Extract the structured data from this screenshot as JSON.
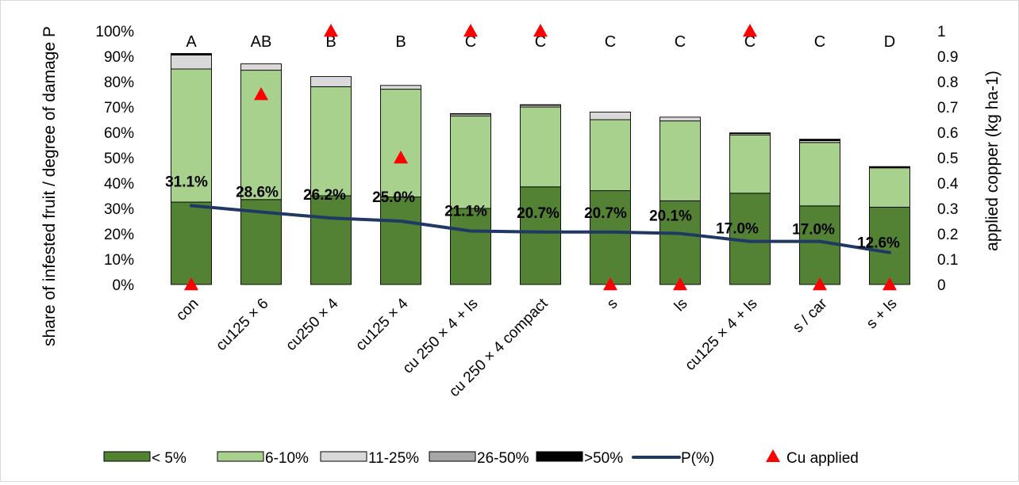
{
  "chart_data": {
    "type": "bar",
    "stacked": true,
    "categories": [
      "con",
      "cu125 × 6",
      "cu250 × 4",
      "cu125 × 4",
      "cu 250 × 4 + ls",
      "cu 250 × 4 compact",
      "s",
      "ls",
      "cu125 × 4 + ls",
      "s / car",
      "s + ls"
    ],
    "series": [
      {
        "name": "< 5%",
        "color": "#548235",
        "values": [
          32.5,
          33.5,
          35.0,
          34.5,
          30.0,
          38.5,
          37.0,
          33.0,
          36.0,
          31.0,
          30.5
        ]
      },
      {
        "name": "6-10%",
        "color": "#a9d18e",
        "values": [
          52.5,
          51.0,
          43.0,
          42.5,
          36.5,
          31.5,
          28.0,
          31.5,
          23.0,
          25.0,
          15.5
        ]
      },
      {
        "name": "11-25%",
        "color": "#d9d9d9",
        "values": [
          5.5,
          2.5,
          4.0,
          1.5,
          0.7,
          0.7,
          3.0,
          1.5,
          0.5,
          0.7,
          0.3
        ]
      },
      {
        "name": "26-50%",
        "color": "#a6a6a6",
        "values": [
          0.3,
          0.0,
          0.0,
          0.0,
          0.0,
          0.0,
          0.0,
          0.0,
          0.0,
          0.0,
          0.0
        ]
      },
      {
        "name": ">50%",
        "color": "#000000",
        "values": [
          0.3,
          0.0,
          0.0,
          0.0,
          0.2,
          0.2,
          0.0,
          0.0,
          0.3,
          0.6,
          0.2
        ]
      }
    ],
    "line_series": {
      "name": "P(%)",
      "color": "#203864",
      "values": [
        31.1,
        28.6,
        26.2,
        25.0,
        21.1,
        20.7,
        20.7,
        20.1,
        17.0,
        17.0,
        12.6
      ],
      "labels": [
        "31.1%",
        "28.6%",
        "26.2%",
        "25.0%",
        "21.1%",
        "20.7%",
        "20.7%",
        "20.1%",
        "17.0%",
        "17.0%",
        "12.6%"
      ]
    },
    "marker_series": {
      "name": "Cu applied",
      "color": "#ff0000",
      "axis": "secondary",
      "values": [
        0,
        0.75,
        1,
        0.5,
        1,
        1,
        0,
        0,
        1,
        0,
        0
      ]
    },
    "significance_letters": [
      "A",
      "AB",
      "B",
      "B",
      "C",
      "C",
      "C",
      "C",
      "C",
      "C",
      "D"
    ],
    "ylabel": "share of infested fruit / degree of damage P",
    "y2label": "applied copper (kg ha-1)",
    "ylim": [
      0,
      100
    ],
    "y_ticks": [
      "0%",
      "10%",
      "20%",
      "30%",
      "40%",
      "50%",
      "60%",
      "70%",
      "80%",
      "90%",
      "100%"
    ],
    "y2lim": [
      0,
      1
    ],
    "y2_ticks": [
      "0",
      "0.1",
      "0.2",
      "0.3",
      "0.4",
      "0.5",
      "0.6",
      "0.7",
      "0.8",
      "0.9",
      "1"
    ],
    "grid": false,
    "legend_position": "bottom"
  }
}
